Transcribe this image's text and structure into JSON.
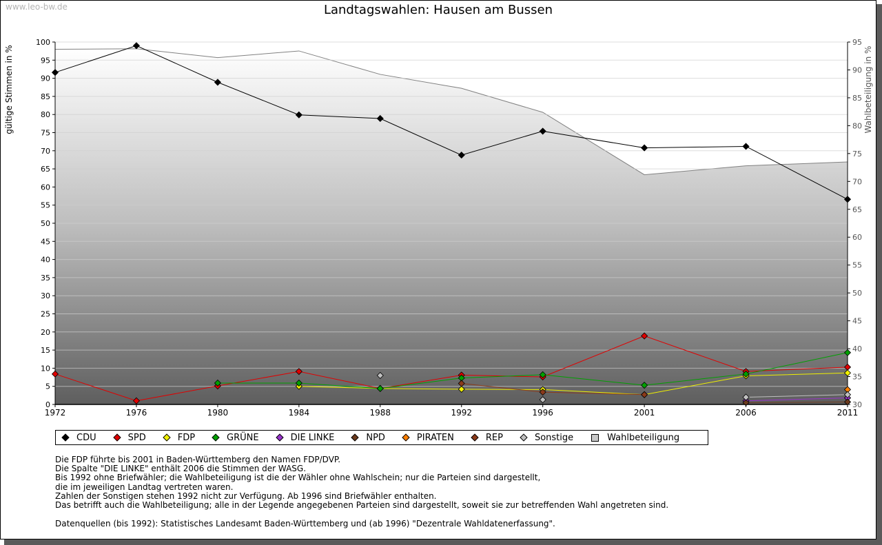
{
  "watermark": "www.leo-bw.de",
  "chart_data": {
    "type": "line",
    "title": "Landtagswahlen: Hausen am Bussen",
    "xlabel": "",
    "ylabel": "gültige Stimmen in %",
    "ylabel_right": "Wahlbeteiligung in %",
    "x": [
      1972,
      1976,
      1980,
      1984,
      1988,
      1992,
      1996,
      2001,
      2006,
      2011
    ],
    "ylim": [
      0,
      100
    ],
    "yticks": [
      0,
      5,
      10,
      15,
      20,
      25,
      30,
      35,
      40,
      45,
      50,
      55,
      60,
      65,
      70,
      75,
      80,
      85,
      90,
      95,
      100
    ],
    "ylim_right": [
      30,
      95
    ],
    "yticks_right": [
      30,
      35,
      40,
      45,
      50,
      55,
      60,
      65,
      70,
      75,
      80,
      85,
      90,
      95
    ],
    "grid": true,
    "series": [
      {
        "name": "CDU",
        "color": "#000000",
        "values": [
          91.6,
          99.0,
          88.9,
          79.9,
          78.9,
          68.8,
          75.4,
          70.8,
          71.2,
          56.6
        ]
      },
      {
        "name": "SPD",
        "color": "#e00000",
        "values": [
          8.4,
          1.0,
          5.1,
          9.1,
          4.4,
          8.1,
          7.6,
          18.9,
          9.1,
          10.3
        ]
      },
      {
        "name": "FDP",
        "color": "#f0f000",
        "values": [
          null,
          null,
          null,
          5.0,
          4.4,
          4.2,
          4.1,
          2.7,
          7.9,
          8.7
        ]
      },
      {
        "name": "GRÜNE",
        "color": "#00a000",
        "values": [
          null,
          null,
          5.9,
          5.9,
          4.4,
          7.3,
          8.2,
          5.3,
          8.4,
          14.3
        ]
      },
      {
        "name": "DIE LINKE",
        "color": "#9933cc",
        "values": [
          null,
          null,
          null,
          null,
          null,
          null,
          null,
          null,
          1.0,
          1.8
        ]
      },
      {
        "name": "NPD",
        "color": "#6b3a1e",
        "values": [
          null,
          null,
          null,
          null,
          null,
          null,
          null,
          null,
          0.5,
          0.7
        ]
      },
      {
        "name": "PIRATEN",
        "color": "#ff8000",
        "values": [
          null,
          null,
          null,
          null,
          null,
          null,
          null,
          null,
          null,
          4.1
        ]
      },
      {
        "name": "REP",
        "color": "#8b3a1a",
        "values": [
          null,
          null,
          null,
          null,
          null,
          5.8,
          3.4,
          2.7,
          null,
          null
        ]
      },
      {
        "name": "Sonstige",
        "color": "#c0c0c0",
        "values": [
          null,
          null,
          null,
          null,
          8.0,
          null,
          1.3,
          null,
          2.0,
          2.7
        ]
      }
    ],
    "turnout": {
      "name": "Wahlbeteiligung",
      "color": "#808080",
      "values": [
        93.7,
        93.8,
        92.2,
        93.4,
        89.2,
        86.7,
        82.4,
        71.2,
        72.8,
        73.5
      ]
    }
  },
  "notes": [
    "Die FDP führte bis 2001 in Baden-Württemberg den Namen FDP/DVP.",
    "Die Spalte \"DIE LINKE\" enthält 2006 die Stimmen der WASG.",
    "Bis 1992 ohne Briefwähler; die Wahlbeteiligung ist die der Wähler ohne Wahlschein; nur die Parteien sind dargestellt,",
    "die im jeweiligen Landtag vertreten waren.",
    "Zahlen der Sonstigen stehen 1992 nicht zur Verfügung. Ab 1996 sind Briefwähler enthalten.",
    "Das betrifft auch die Wahlbeteiligung; alle in der Legende angegebenen Parteien sind dargestellt, soweit sie zur betreffenden Wahl angetreten sind."
  ],
  "source": "Datenquellen (bis 1992): Statistisches Landesamt Baden-Württemberg und (ab 1996) \"Dezentrale Wahldatenerfassung\"."
}
